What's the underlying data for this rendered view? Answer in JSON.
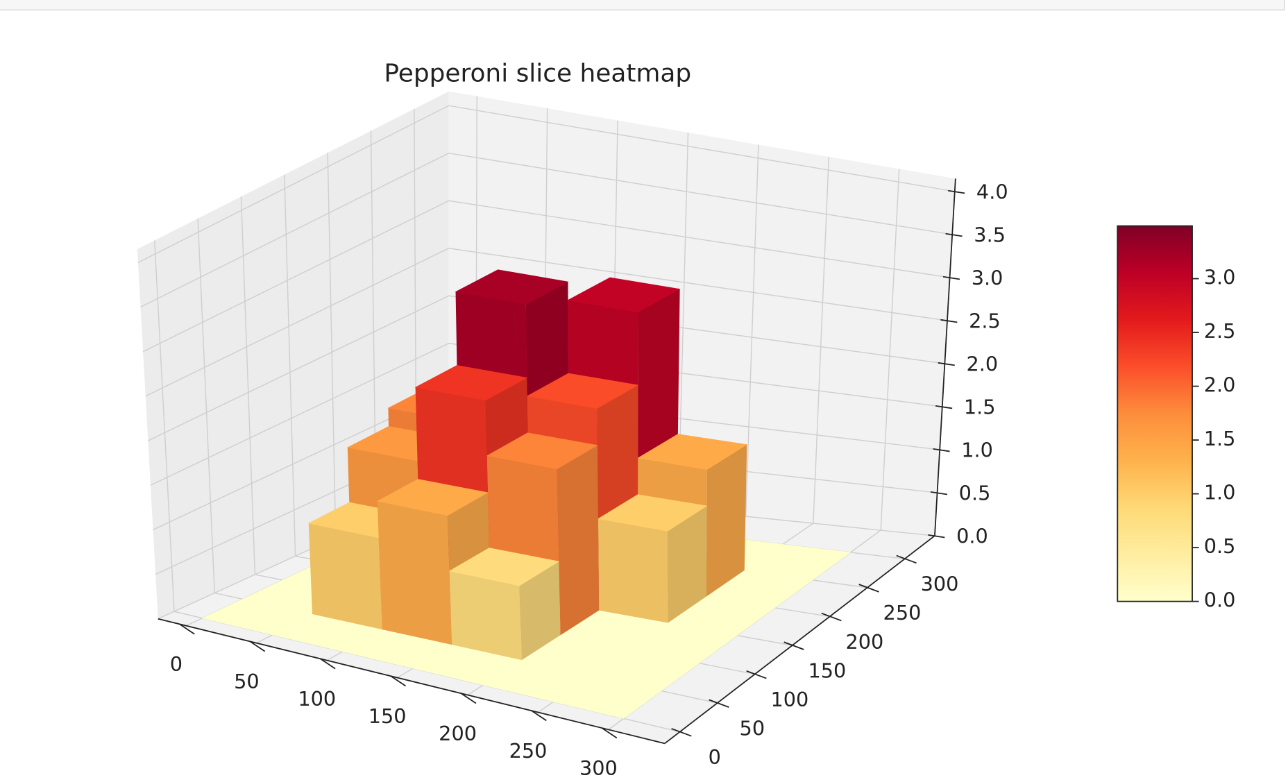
{
  "chart_data": {
    "type": "surface3d",
    "title": "Pepperoni slice heatmap",
    "colormap": "YlOrRd",
    "x": [
      25,
      75,
      125,
      175,
      225,
      275
    ],
    "y": [
      25,
      75,
      125,
      175,
      225,
      275
    ],
    "z": [
      [
        0,
        0,
        0,
        0,
        0,
        0
      ],
      [
        0,
        1.0,
        1.4,
        0.8,
        0,
        0
      ],
      [
        0,
        1.6,
        2.4,
        1.8,
        0,
        0
      ],
      [
        0,
        1.8,
        3.2,
        2.2,
        1.0,
        0
      ],
      [
        0,
        1.5,
        2.6,
        3.0,
        1.4,
        0
      ],
      [
        0,
        0,
        0,
        0,
        0,
        0
      ]
    ],
    "xlim": [
      -20,
      340
    ],
    "ylim": [
      -20,
      340
    ],
    "zlim": [
      0,
      4.15
    ],
    "xticks": [
      0,
      50,
      100,
      150,
      200,
      250,
      300
    ],
    "yticks": [
      0,
      50,
      100,
      150,
      200,
      250,
      300
    ],
    "zticks": [
      {
        "value": 0,
        "label": "0.0"
      },
      0.5,
      {
        "value": 1,
        "label": "1.0"
      },
      1.5,
      {
        "value": 2,
        "label": "2.0"
      },
      2.5,
      {
        "value": 3,
        "label": "3.0"
      },
      3.5,
      {
        "value": 4,
        "label": "4.0"
      }
    ],
    "clim": [
      0,
      3.49
    ],
    "colorbar_ticks": [
      {
        "value": 0,
        "label": "0.0"
      },
      0.5,
      {
        "value": 1,
        "label": "1.0"
      },
      1.5,
      {
        "value": 2,
        "label": "2.0"
      },
      2.5,
      {
        "value": 3,
        "label": "3.0"
      }
    ],
    "grid": true
  }
}
